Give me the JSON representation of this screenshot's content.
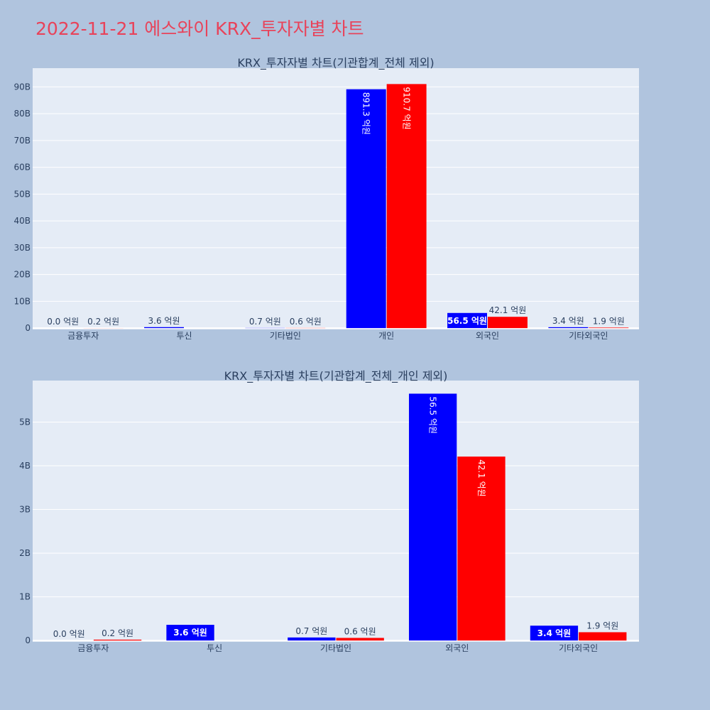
{
  "title": "2022-11-21 에스와이 KRX_투자자별 차트",
  "colors": {
    "page_bg": "#b0c4de",
    "plot_bg": "#e5ecf6",
    "grid": "#ffffff",
    "title": "#e8435a",
    "text": "#2a3f5f",
    "series_a": "#0000ff",
    "series_b": "#ff0000"
  },
  "chart_data": [
    {
      "type": "bar",
      "title": "KRX_투자자별 차트(기관합계_전체 제외)",
      "categories": [
        "금융투자",
        "투신",
        "기타법인",
        "개인",
        "외국인",
        "기타외국인"
      ],
      "series": [
        {
          "values": [
            0.0,
            0.36,
            0.07,
            89.13,
            5.65,
            0.34
          ],
          "labels": [
            "0.0 억원",
            "3.6 억원",
            "0.7 억원",
            "891.3 억원",
            "56.5 억원",
            "3.4 억원"
          ]
        },
        {
          "values": [
            0.02,
            0,
            0.06,
            91.07,
            4.21,
            0.19
          ],
          "labels": [
            "0.2 억원",
            "",
            "0.6 억원",
            "910.7 억원",
            "42.1 억원",
            "1.9 억원"
          ]
        }
      ],
      "ylim": [
        -0.5,
        97
      ],
      "yticks": [
        0,
        10,
        20,
        30,
        40,
        50,
        60,
        70,
        80,
        90
      ],
      "ytick_labels": [
        "0",
        "10B",
        "20B",
        "30B",
        "40B",
        "50B",
        "60B",
        "70B",
        "80B",
        "90B"
      ],
      "grid": true
    },
    {
      "type": "bar",
      "title": "KRX_투자자별 차트(기관합계_전체_개인 제외)",
      "categories": [
        "금융투자",
        "투신",
        "기타법인",
        "외국인",
        "기타외국인"
      ],
      "series": [
        {
          "values": [
            0.0,
            0.36,
            0.07,
            5.65,
            0.34
          ],
          "labels": [
            "0.0 억원",
            "3.6 억원",
            "0.7 억원",
            "56.5 억원",
            "3.4 억원"
          ]
        },
        {
          "values": [
            0.02,
            0,
            0.06,
            4.21,
            0.19
          ],
          "labels": [
            "0.2 억원",
            "",
            "0.6 억원",
            "42.1 억원",
            "1.9 억원"
          ]
        }
      ],
      "ylim": [
        -0.03,
        5.95
      ],
      "yticks": [
        0,
        1,
        2,
        3,
        4,
        5
      ],
      "ytick_labels": [
        "0",
        "1B",
        "2B",
        "3B",
        "4B",
        "5B"
      ],
      "grid": true
    }
  ]
}
